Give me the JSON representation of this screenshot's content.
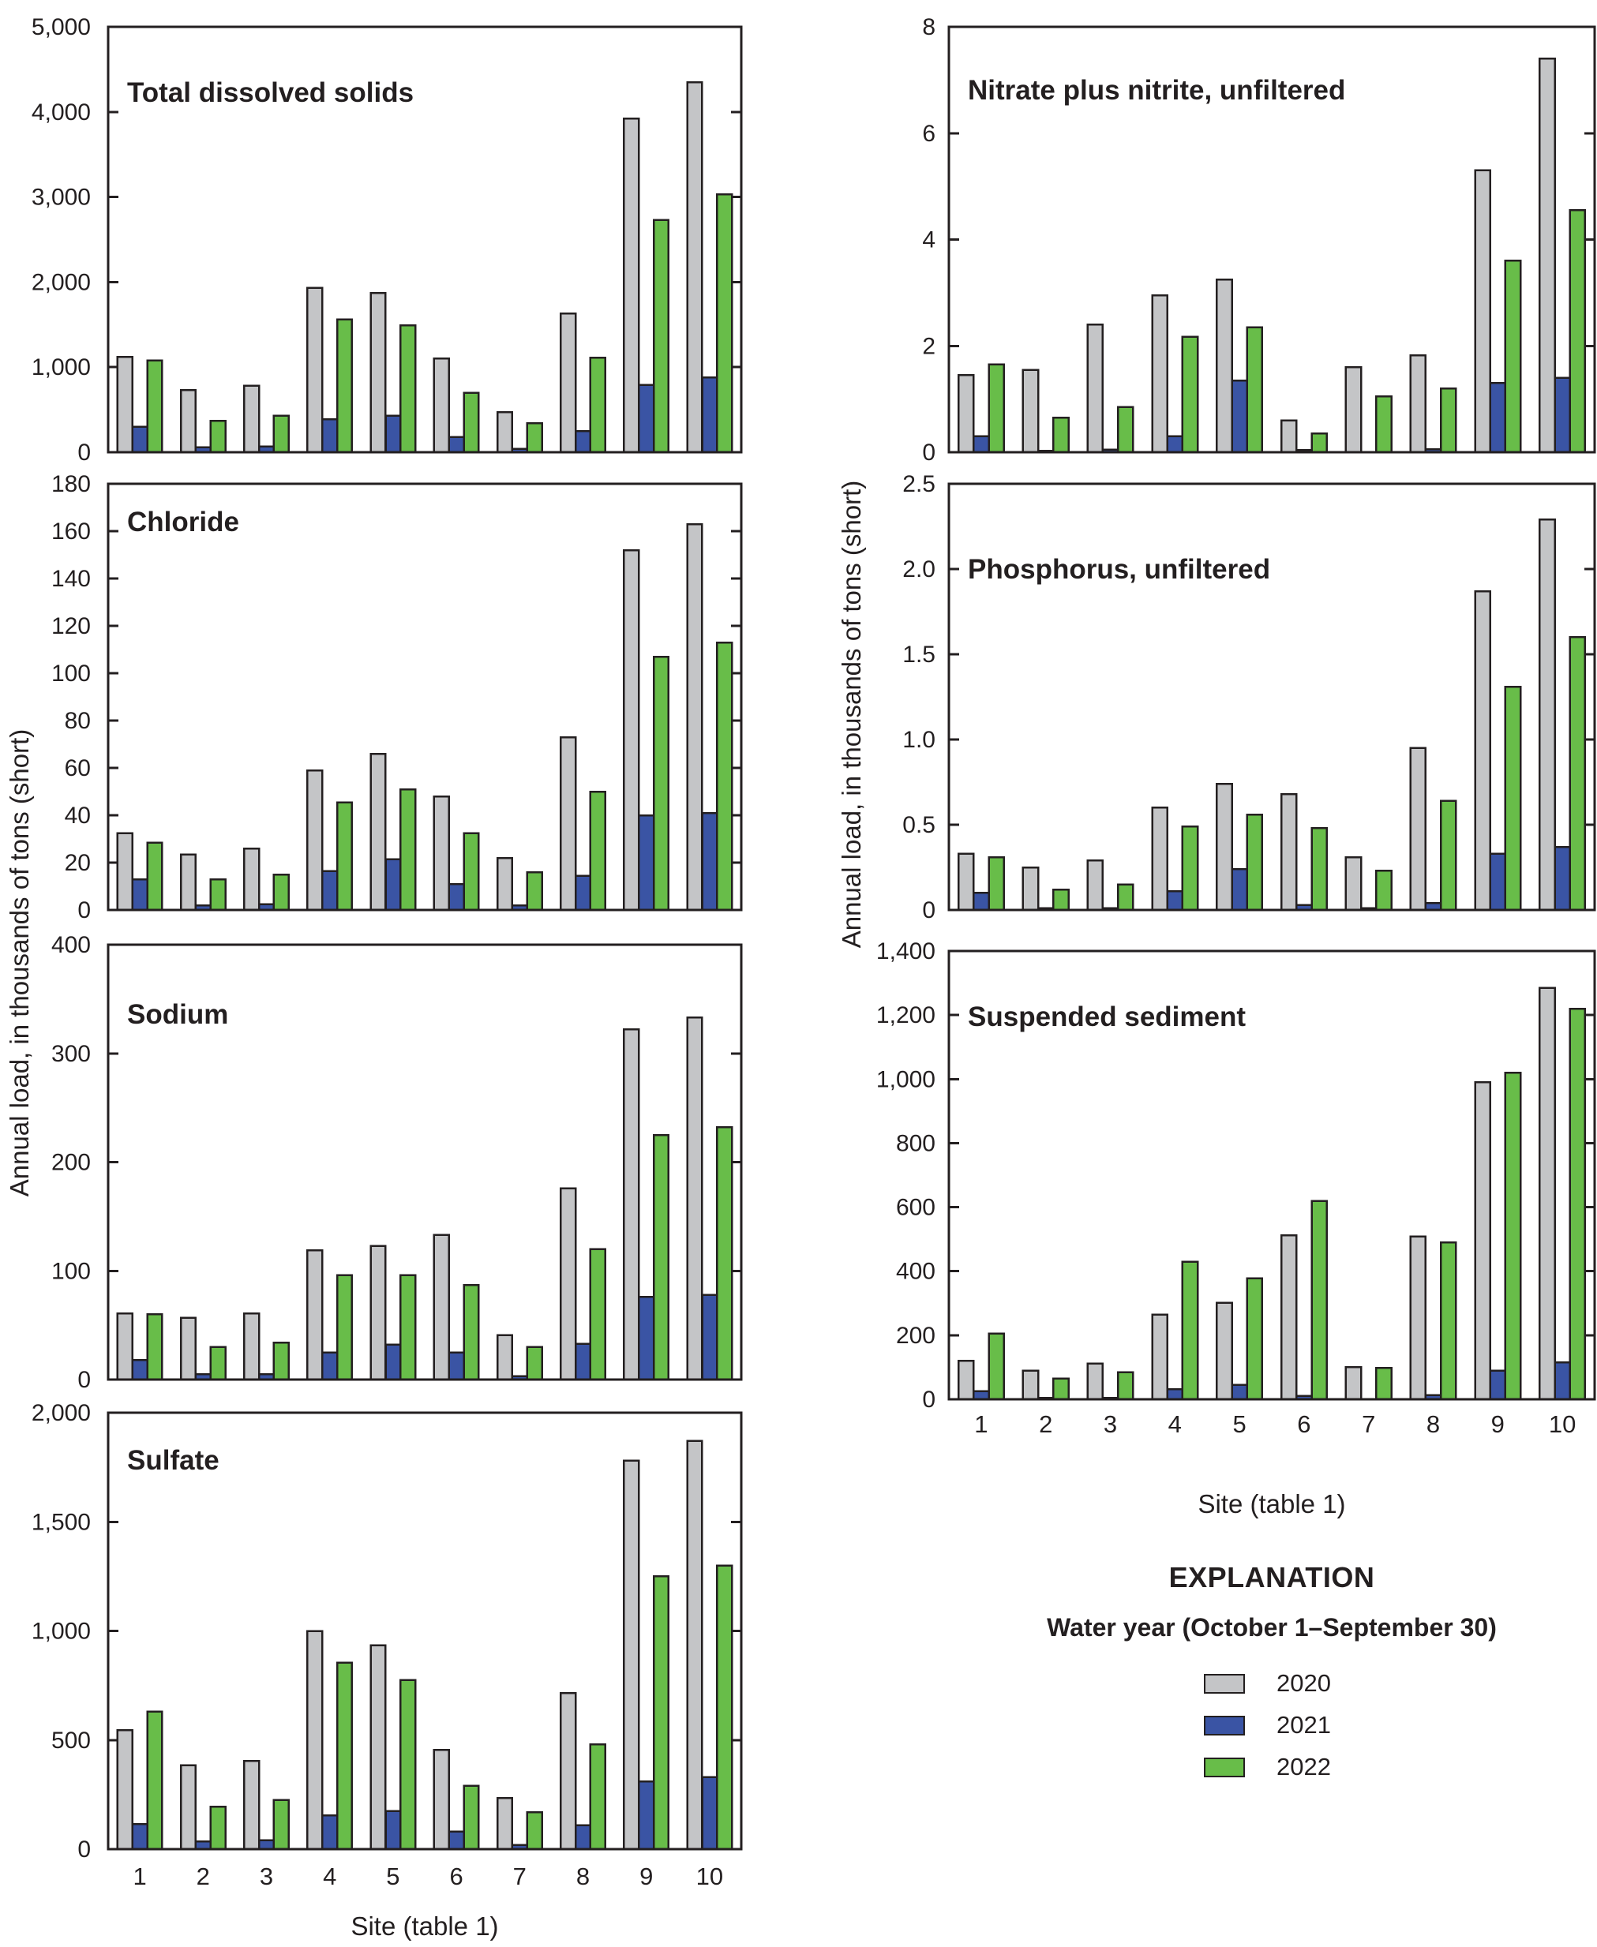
{
  "figure": {
    "xlabel": "Site (table 1)",
    "ylabel": "Annual load, in thousands of tons (short)"
  },
  "legend": {
    "title": "EXPLANATION",
    "subtitle": "Water year (October 1–September 30)",
    "items": [
      {
        "label": "2020",
        "color": "#c4c5c7"
      },
      {
        "label": "2021",
        "color": "#3a54a4"
      },
      {
        "label": "2022",
        "color": "#68bd49"
      }
    ]
  },
  "colors": {
    "axis": "#231f20",
    "text": "#231f20",
    "background": "#ffffff",
    "series_2020": "#c4c5c7",
    "series_2021": "#3a54a4",
    "series_2022": "#68bd49"
  },
  "chart_data": [
    {
      "type": "bar",
      "title": "Total dissolved solids",
      "categories": [
        "1",
        "2",
        "3",
        "4",
        "5",
        "6",
        "7",
        "8",
        "9",
        "10"
      ],
      "series": [
        {
          "name": "2020",
          "values": [
            1120,
            730,
            780,
            1930,
            1870,
            1100,
            470,
            1630,
            3920,
            4350
          ]
        },
        {
          "name": "2021",
          "values": [
            300,
            60,
            70,
            390,
            430,
            180,
            40,
            250,
            790,
            880
          ]
        },
        {
          "name": "2022",
          "values": [
            1080,
            370,
            430,
            1560,
            1490,
            700,
            340,
            1110,
            2730,
            3030
          ]
        }
      ],
      "ylim": [
        0,
        5000
      ],
      "yticks": [
        0,
        1000,
        2000,
        3000,
        4000,
        5000
      ],
      "ytick_labels": [
        "0",
        "1,000",
        "2,000",
        "3,000",
        "4,000",
        "5,000"
      ],
      "show_x_tick_labels": false,
      "grid": false,
      "legend_position": "none"
    },
    {
      "type": "bar",
      "title": "Chloride",
      "categories": [
        "1",
        "2",
        "3",
        "4",
        "5",
        "6",
        "7",
        "8",
        "9",
        "10"
      ],
      "series": [
        {
          "name": "2020",
          "values": [
            32.5,
            23.5,
            26,
            59,
            66,
            48,
            22,
            73,
            152,
            163
          ]
        },
        {
          "name": "2021",
          "values": [
            13,
            2,
            2.5,
            16.5,
            21.5,
            11,
            2,
            14.5,
            40,
            41
          ]
        },
        {
          "name": "2022",
          "values": [
            28.5,
            13,
            15,
            45.5,
            51,
            32.5,
            16,
            50,
            107,
            113
          ]
        }
      ],
      "ylim": [
        0,
        180
      ],
      "yticks": [
        0,
        20,
        40,
        60,
        80,
        100,
        120,
        140,
        160,
        180
      ],
      "ytick_labels": [
        "0",
        "20",
        "40",
        "60",
        "80",
        "100",
        "120",
        "140",
        "160",
        "180"
      ],
      "show_x_tick_labels": false,
      "grid": false,
      "legend_position": "none"
    },
    {
      "type": "bar",
      "title": "Sodium",
      "categories": [
        "1",
        "2",
        "3",
        "4",
        "5",
        "6",
        "7",
        "8",
        "9",
        "10"
      ],
      "series": [
        {
          "name": "2020",
          "values": [
            61,
            57,
            61,
            119,
            123,
            133,
            41,
            176,
            322,
            333
          ]
        },
        {
          "name": "2021",
          "values": [
            18,
            5,
            5,
            25,
            32,
            25,
            3,
            33,
            76,
            78
          ]
        },
        {
          "name": "2022",
          "values": [
            60,
            30,
            34,
            96,
            96,
            87,
            30,
            120,
            225,
            232
          ]
        }
      ],
      "ylim": [
        0,
        400
      ],
      "yticks": [
        0,
        100,
        200,
        300,
        400
      ],
      "ytick_labels": [
        "0",
        "100",
        "200",
        "300",
        "400"
      ],
      "show_x_tick_labels": false,
      "grid": false,
      "legend_position": "none"
    },
    {
      "type": "bar",
      "title": "Sulfate",
      "categories": [
        "1",
        "2",
        "3",
        "4",
        "5",
        "6",
        "7",
        "8",
        "9",
        "10"
      ],
      "series": [
        {
          "name": "2020",
          "values": [
            545,
            385,
            405,
            1000,
            935,
            455,
            235,
            715,
            1780,
            1870
          ]
        },
        {
          "name": "2021",
          "values": [
            115,
            35,
            40,
            155,
            175,
            80,
            20,
            110,
            310,
            330
          ]
        },
        {
          "name": "2022",
          "values": [
            630,
            195,
            225,
            855,
            775,
            290,
            170,
            480,
            1250,
            1300
          ]
        }
      ],
      "ylim": [
        0,
        2000
      ],
      "yticks": [
        0,
        500,
        1000,
        1500,
        2000
      ],
      "ytick_labels": [
        "0",
        "500",
        "1,000",
        "1,500",
        "2,000"
      ],
      "show_x_tick_labels": true,
      "grid": false,
      "legend_position": "none"
    },
    {
      "type": "bar",
      "title": "Nitrate plus nitrite, unfiltered",
      "categories": [
        "1",
        "2",
        "3",
        "4",
        "5",
        "6",
        "7",
        "8",
        "9",
        "10"
      ],
      "series": [
        {
          "name": "2020",
          "values": [
            1.45,
            1.55,
            2.4,
            2.95,
            3.25,
            0.6,
            1.6,
            1.82,
            5.3,
            7.4
          ]
        },
        {
          "name": "2021",
          "values": [
            0.3,
            0.03,
            0.05,
            0.3,
            1.35,
            0.04,
            0,
            0.06,
            1.3,
            1.4
          ]
        },
        {
          "name": "2022",
          "values": [
            1.65,
            0.65,
            0.85,
            2.17,
            2.35,
            0.35,
            1.05,
            1.2,
            3.6,
            4.55
          ]
        }
      ],
      "ylim": [
        0,
        8
      ],
      "yticks": [
        0,
        2,
        4,
        6,
        8
      ],
      "ytick_labels": [
        "0",
        "2",
        "4",
        "6",
        "8"
      ],
      "show_x_tick_labels": false,
      "grid": false,
      "legend_position": "none"
    },
    {
      "type": "bar",
      "title": "Phosphorus, unfiltered",
      "categories": [
        "1",
        "2",
        "3",
        "4",
        "5",
        "6",
        "7",
        "8",
        "9",
        "10"
      ],
      "series": [
        {
          "name": "2020",
          "values": [
            0.33,
            0.25,
            0.29,
            0.6,
            0.74,
            0.68,
            0.31,
            0.95,
            1.87,
            2.29
          ]
        },
        {
          "name": "2021",
          "values": [
            0.1,
            0.01,
            0.01,
            0.11,
            0.24,
            0.03,
            0.01,
            0.04,
            0.33,
            0.37
          ]
        },
        {
          "name": "2022",
          "values": [
            0.31,
            0.12,
            0.15,
            0.49,
            0.56,
            0.48,
            0.23,
            0.64,
            1.31,
            1.6
          ]
        }
      ],
      "ylim": [
        0,
        2.5
      ],
      "yticks": [
        0,
        0.5,
        1.0,
        1.5,
        2.0,
        2.5
      ],
      "ytick_labels": [
        "0",
        "0.5",
        "1.0",
        "1.5",
        "2.0",
        "2.5"
      ],
      "show_x_tick_labels": false,
      "grid": false,
      "legend_position": "none"
    },
    {
      "type": "bar",
      "title": "Suspended sediment",
      "categories": [
        "1",
        "2",
        "3",
        "4",
        "5",
        "6",
        "7",
        "8",
        "9",
        "10"
      ],
      "series": [
        {
          "name": "2020",
          "values": [
            120,
            90,
            112,
            265,
            302,
            512,
            100,
            508,
            990,
            1285
          ]
        },
        {
          "name": "2021",
          "values": [
            25,
            5,
            5,
            32,
            45,
            10,
            0,
            13,
            90,
            115
          ]
        },
        {
          "name": "2022",
          "values": [
            205,
            65,
            85,
            430,
            378,
            620,
            98,
            490,
            1020,
            1220
          ]
        }
      ],
      "ylim": [
        0,
        1400
      ],
      "yticks": [
        0,
        200,
        400,
        600,
        800,
        1000,
        1200,
        1400
      ],
      "ytick_labels": [
        "0",
        "200",
        "400",
        "600",
        "800",
        "1,000",
        "1,200",
        "1,400"
      ],
      "show_x_tick_labels": true,
      "grid": false,
      "legend_position": "none"
    }
  ]
}
